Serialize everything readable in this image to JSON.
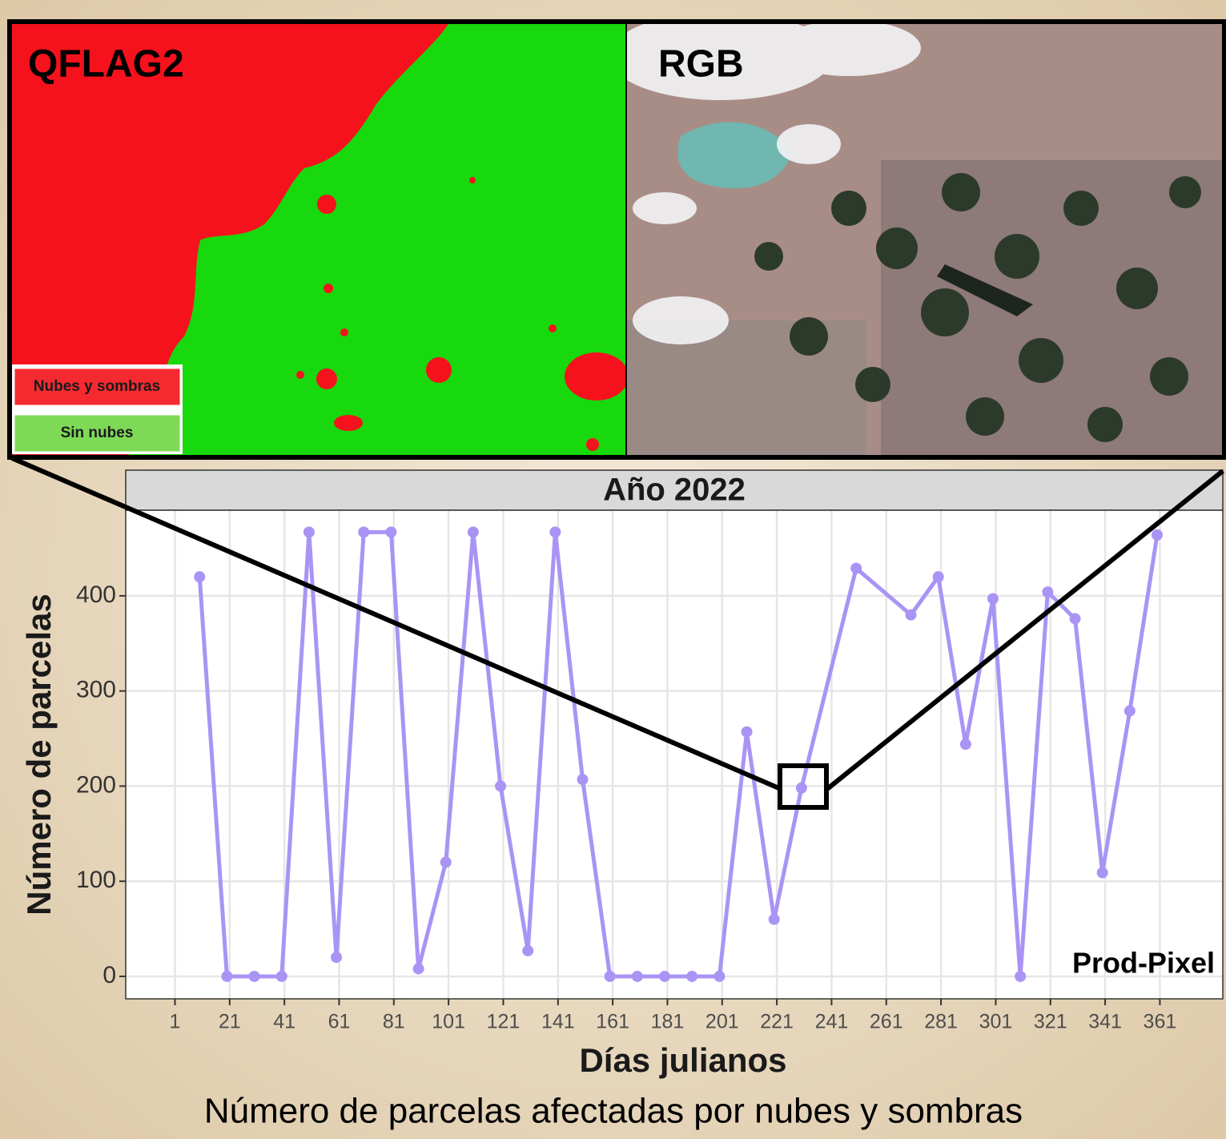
{
  "chart_data": {
    "type": "line",
    "title": "Número de parcelas afectadas por nubes y sombras",
    "panel_title": "Año 2022",
    "x_label": "Días julianos",
    "y_label": "Número de parcelas",
    "annotation": "Prod-Pixel",
    "image_labels": [
      "QFLAG2",
      "RGB"
    ],
    "image_legend": [
      {
        "name": "Nubes y sombras",
        "color": "#f52a30"
      },
      {
        "name": "Sin nubes",
        "color": "#7ed957"
      }
    ],
    "x": [
      10,
      20,
      30,
      40,
      50,
      60,
      70,
      80,
      90,
      100,
      110,
      120,
      130,
      140,
      150,
      160,
      170,
      180,
      190,
      200,
      210,
      220,
      230,
      250,
      270,
      280,
      290,
      300,
      310,
      320,
      330,
      340,
      350,
      360
    ],
    "series": [
      {
        "name": "Prod-Pixel",
        "color": "#a994f5",
        "values": [
          420,
          0,
          0,
          0,
          467,
          20,
          467,
          467,
          8,
          120,
          467,
          200,
          27,
          467,
          207,
          0,
          0,
          0,
          0,
          0,
          257,
          60,
          198,
          429,
          380,
          420,
          244,
          397,
          0,
          404,
          376,
          109,
          279,
          464
        ]
      }
    ],
    "xlim": [
      -17,
      384
    ],
    "ylim": [
      -23.6,
      490
    ],
    "xticks": [
      1,
      21,
      41,
      61,
      81,
      101,
      121,
      141,
      161,
      181,
      201,
      221,
      241,
      261,
      281,
      301,
      321,
      341,
      361
    ],
    "yticks": [
      0,
      100,
      200,
      300,
      400
    ],
    "grid": true
  }
}
